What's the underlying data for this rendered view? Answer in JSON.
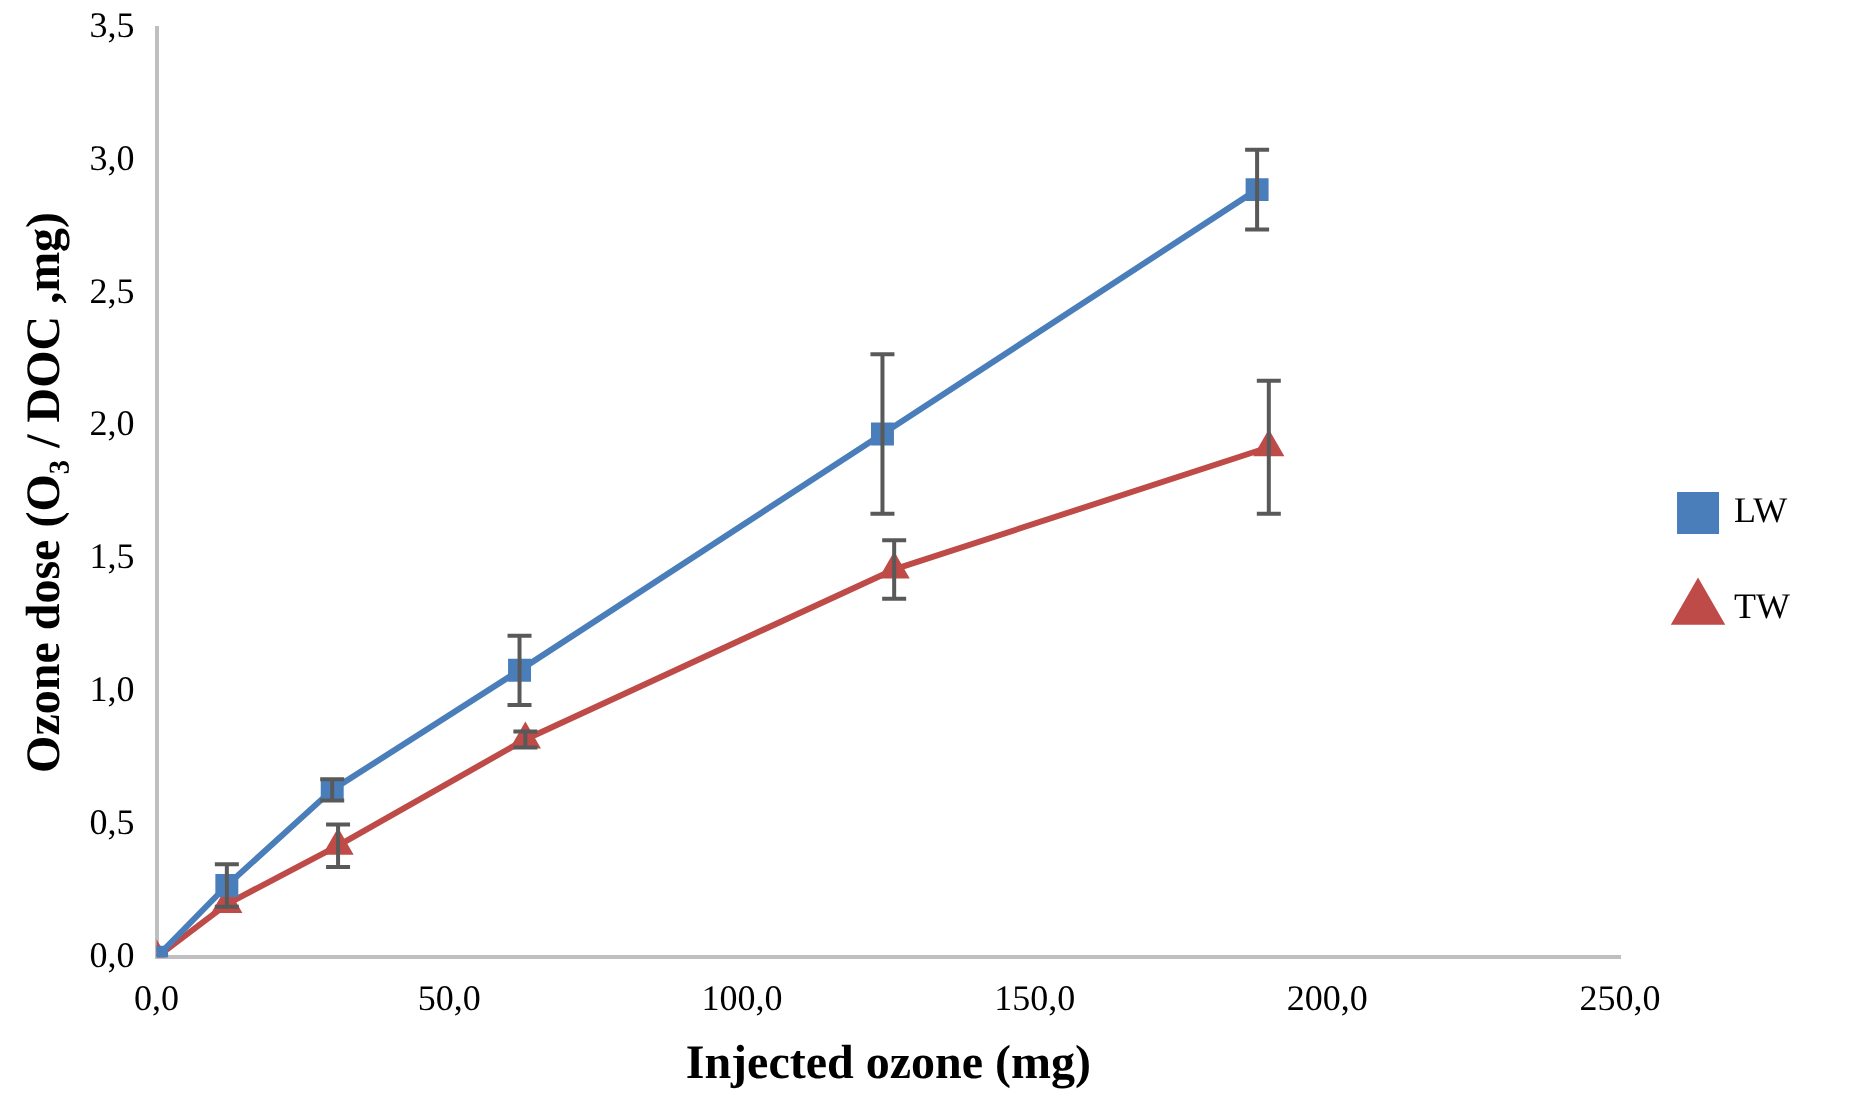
{
  "chart_data": {
    "type": "line",
    "xlabel": "Injected ozone (mg)",
    "ylabel": "Ozone dose (O₃ / DOC ,mg)",
    "xlim": [
      0,
      250
    ],
    "xticks": [
      {
        "value": 0,
        "label": "0,0"
      },
      {
        "value": 50,
        "label": "50,0"
      },
      {
        "value": 100,
        "label": "100,0"
      },
      {
        "value": 150,
        "label": "150,0"
      },
      {
        "value": 200,
        "label": "200,0"
      },
      {
        "value": 250,
        "label": "250,0"
      }
    ],
    "ylim": [
      0,
      3.5
    ],
    "yticks": [
      {
        "value": 0,
        "label": "0,0"
      },
      {
        "value": 0.5,
        "label": "0,5"
      },
      {
        "value": 1,
        "label": "1,0"
      },
      {
        "value": 1.5,
        "label": "1,5"
      },
      {
        "value": 2,
        "label": "2,0"
      },
      {
        "value": 2.5,
        "label": "2,5"
      },
      {
        "value": 3,
        "label": "3,0"
      },
      {
        "value": 3.5,
        "label": "3,5"
      }
    ],
    "grid": false,
    "legend": "right",
    "line_style": "solid",
    "series": [
      {
        "name": "LW",
        "color": "#4a7ebb",
        "marker": "square",
        "x": [
          0,
          12,
          30,
          62,
          124,
          188
        ],
        "values": [
          0,
          0.27,
          0.63,
          1.08,
          1.97,
          2.89
        ],
        "errors": [
          null,
          0.08,
          0.04,
          0.13,
          0.3,
          0.15
        ]
      },
      {
        "name": "TW",
        "color": "#be4b48",
        "marker": "triangle",
        "x": [
          0,
          12,
          31,
          63,
          126,
          190
        ],
        "values": [
          0,
          0.2,
          0.42,
          0.82,
          1.46,
          1.92
        ],
        "errors": [
          null,
          null,
          0.08,
          0.03,
          0.11,
          0.25
        ]
      }
    ]
  }
}
